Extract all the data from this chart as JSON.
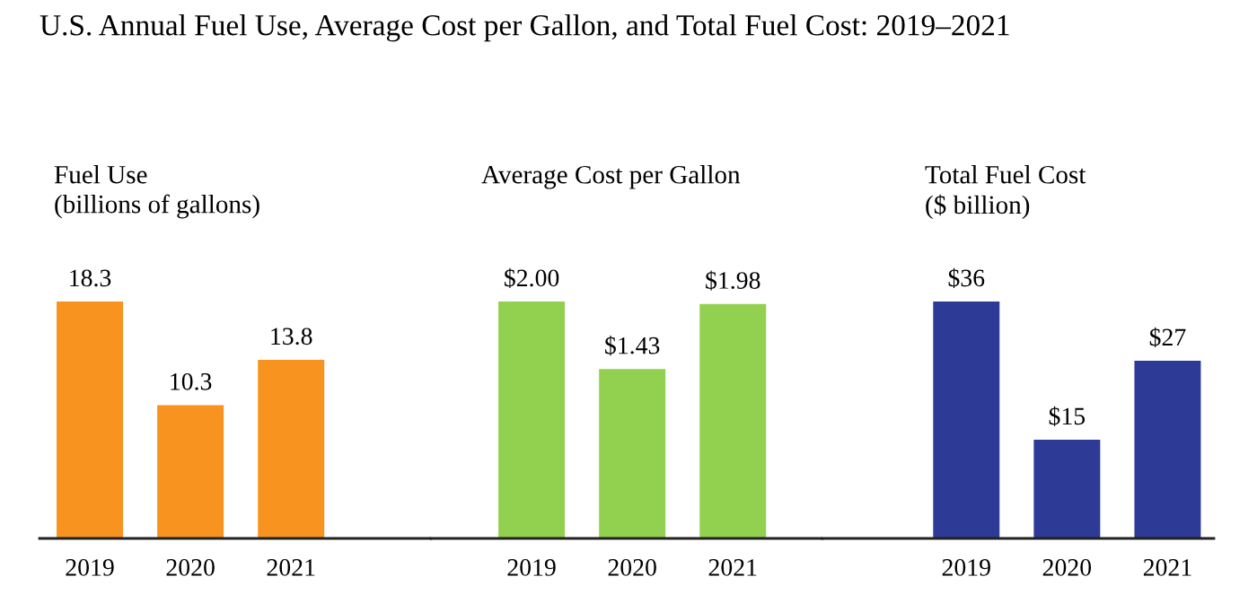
{
  "chart_data": [
    {
      "type": "bar",
      "title": "Fuel Use\n(billions of gallons)",
      "annotations": [
        "U.S. Annual Fuel Use, Average Cost per Gallon, and Total Fuel Cost: 2019–2021"
      ],
      "categories": [
        "2019",
        "2020",
        "2021"
      ],
      "values": [
        18.3,
        10.3,
        13.8
      ],
      "color": "#f7931e",
      "data_labels": true,
      "tick_labels": "x"
    },
    {
      "type": "bar",
      "title": "Average Cost per Gallon",
      "categories": [
        "2019",
        "2020",
        "2021"
      ],
      "values": [
        2.0,
        1.43,
        1.98
      ],
      "value_labels": [
        "$2.00",
        "$1.43",
        "$1.98"
      ],
      "color": "#92d050",
      "tick_labels": "x"
    },
    {
      "type": "bar",
      "title": "Total Fuel Cost\n($ billion)",
      "categories": [
        "2019",
        "2020",
        "2021"
      ],
      "values": [
        36,
        15,
        27
      ],
      "value_labels": [
        "$36",
        "$15",
        "$27"
      ],
      "color": "#2e3b96",
      "tick_labels": "x"
    }
  ]
}
